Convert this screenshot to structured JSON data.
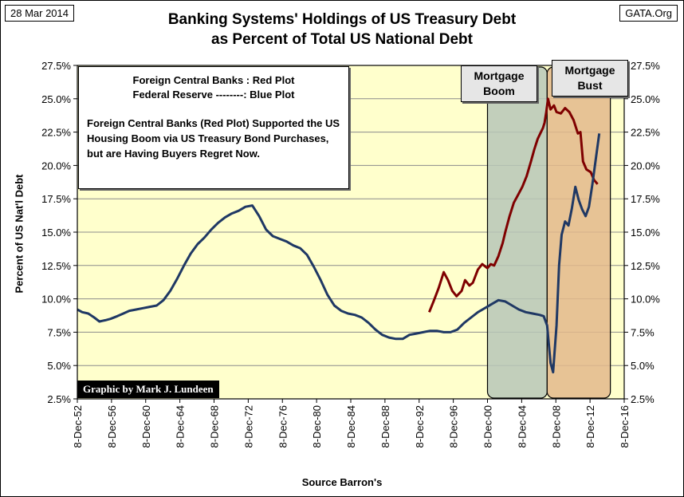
{
  "header": {
    "date": "28 Mar 2014",
    "source": "GATA.Org",
    "title_line1": "Banking Systems' Holdings of US Treasury Debt",
    "title_line2": "as Percent of Total US National Debt"
  },
  "legend": {
    "line1": "Foreign Central Banks : Red Plot",
    "line2": "Federal Reserve --------: Blue Plot",
    "note": "Foreign Central Banks (Red Plot) Supported the US Housing Boom via US Treasury Bond Purchases, but are Having Buyers Regret Now."
  },
  "credit": "Graphic by Mark J. Lundeen",
  "colors": {
    "plot_background": "#ffffcc",
    "red_series": "#7f0000",
    "blue_series": "#1f3864",
    "boom_fill": "#b7c7b7",
    "bust_fill": "#e3b98b",
    "gridline": "#8c8c8c"
  },
  "chart_data": {
    "type": "line",
    "title": "Banking Systems' Holdings of US Treasury Debt as Percent of Total US National Debt",
    "xlabel": "Source Barron's",
    "ylabel": "Percent  of  US  Nat'l  Debt",
    "x_unit": "year",
    "xlim": [
      1952.92,
      2016.92
    ],
    "ylim": [
      2.5,
      27.5
    ],
    "y_ticks": [
      2.5,
      5.0,
      7.5,
      10.0,
      12.5,
      15.0,
      17.5,
      20.0,
      22.5,
      25.0,
      27.5
    ],
    "y_tick_labels": [
      "2.5%",
      "5.0%",
      "7.5%",
      "10.0%",
      "12.5%",
      "15.0%",
      "17.5%",
      "20.0%",
      "22.5%",
      "25.0%",
      "27.5%"
    ],
    "x_ticks": [
      1952.92,
      1956.92,
      1960.92,
      1964.92,
      1968.92,
      1972.92,
      1976.92,
      1980.92,
      1984.92,
      1988.92,
      1992.92,
      1996.92,
      2000.92,
      2004.92,
      2008.92,
      2012.92,
      2016.92
    ],
    "x_tick_labels": [
      "8-Dec-52",
      "8-Dec-56",
      "8-Dec-60",
      "8-Dec-64",
      "8-Dec-68",
      "8-Dec-72",
      "8-Dec-76",
      "8-Dec-80",
      "8-Dec-84",
      "8-Dec-88",
      "8-Dec-92",
      "8-Dec-96",
      "8-Dec-00",
      "8-Dec-04",
      "8-Dec-08",
      "8-Dec-12",
      "8-Dec-16"
    ],
    "grid": "horizontal",
    "dual_y_axis": true,
    "periods": [
      {
        "label": "Mortgage Boom",
        "start": 2000.92,
        "end": 2007.9
      },
      {
        "label": "Mortgage Bust",
        "start": 2007.9,
        "end": 2015.3
      }
    ],
    "series": [
      {
        "name": "Foreign Central Banks",
        "color": "#7f0000",
        "x": [
          1994.1,
          1994.6,
          1995.2,
          1995.8,
          1996.3,
          1996.8,
          1997.3,
          1997.9,
          1998.3,
          1998.8,
          1999.2,
          1999.8,
          2000.3,
          2000.9,
          2001.3,
          2001.7,
          2002.2,
          2002.7,
          2003.0,
          2003.5,
          2004.0,
          2004.5,
          2005.0,
          2005.5,
          2006.0,
          2006.4,
          2006.8,
          2007.1,
          2007.4,
          2007.6,
          2007.8,
          2008.0,
          2008.3,
          2008.7,
          2009.0,
          2009.5,
          2010.0,
          2010.5,
          2011.0,
          2011.5,
          2011.8,
          2012.1,
          2012.5,
          2013.0,
          2013.4,
          2013.8
        ],
        "y": [
          9.0,
          9.8,
          10.8,
          12.0,
          11.4,
          10.6,
          10.2,
          10.6,
          11.4,
          11.0,
          11.2,
          12.2,
          12.6,
          12.3,
          12.6,
          12.5,
          13.2,
          14.2,
          15.0,
          16.2,
          17.2,
          17.8,
          18.4,
          19.2,
          20.3,
          21.2,
          22.0,
          22.4,
          22.8,
          23.2,
          24.0,
          25.0,
          24.2,
          24.5,
          24.0,
          23.9,
          24.3,
          24.0,
          23.4,
          22.4,
          22.5,
          20.3,
          19.7,
          19.5,
          18.9,
          18.6
        ]
      },
      {
        "name": "Federal Reserve",
        "color": "#1f3864",
        "x": [
          1952.92,
          1953.5,
          1954.2,
          1954.9,
          1955.5,
          1956.2,
          1956.8,
          1957.6,
          1958.3,
          1959.0,
          1959.8,
          1960.6,
          1961.4,
          1962.2,
          1963.0,
          1963.8,
          1964.6,
          1965.4,
          1966.2,
          1967.0,
          1967.8,
          1968.6,
          1969.4,
          1970.2,
          1971.0,
          1971.8,
          1972.6,
          1973.4,
          1974.2,
          1975.0,
          1975.8,
          1976.6,
          1977.4,
          1978.2,
          1979.0,
          1979.8,
          1980.6,
          1981.4,
          1982.2,
          1983.0,
          1983.8,
          1984.6,
          1985.4,
          1986.2,
          1987.0,
          1987.8,
          1988.6,
          1989.4,
          1990.2,
          1991.0,
          1991.8,
          1992.6,
          1993.4,
          1994.2,
          1995.0,
          1995.8,
          1996.6,
          1997.4,
          1998.2,
          1999.0,
          1999.8,
          2000.6,
          2001.4,
          2002.2,
          2003.0,
          2003.8,
          2004.6,
          2005.4,
          2006.2,
          2007.0,
          2007.5,
          2007.9,
          2008.3,
          2008.6,
          2009.0,
          2009.3,
          2009.6,
          2010.0,
          2010.4,
          2010.8,
          2011.2,
          2011.6,
          2012.0,
          2012.4,
          2012.8,
          2013.2,
          2013.6,
          2014.0
        ],
        "y": [
          9.2,
          9.0,
          8.9,
          8.6,
          8.3,
          8.4,
          8.5,
          8.7,
          8.9,
          9.1,
          9.2,
          9.3,
          9.4,
          9.5,
          9.9,
          10.6,
          11.5,
          12.5,
          13.4,
          14.1,
          14.6,
          15.2,
          15.7,
          16.1,
          16.4,
          16.6,
          16.9,
          17.0,
          16.2,
          15.2,
          14.7,
          14.5,
          14.3,
          14.0,
          13.8,
          13.3,
          12.4,
          11.4,
          10.3,
          9.5,
          9.1,
          8.9,
          8.8,
          8.6,
          8.2,
          7.7,
          7.3,
          7.1,
          7.0,
          7.0,
          7.3,
          7.4,
          7.5,
          7.6,
          7.6,
          7.5,
          7.5,
          7.7,
          8.2,
          8.6,
          9.0,
          9.3,
          9.6,
          9.9,
          9.8,
          9.5,
          9.2,
          9.0,
          8.9,
          8.8,
          8.7,
          8.0,
          5.2,
          4.5,
          8.0,
          12.5,
          14.8,
          15.8,
          15.5,
          16.8,
          18.4,
          17.4,
          16.7,
          16.2,
          16.9,
          18.6,
          20.5,
          22.4
        ]
      }
    ]
  }
}
